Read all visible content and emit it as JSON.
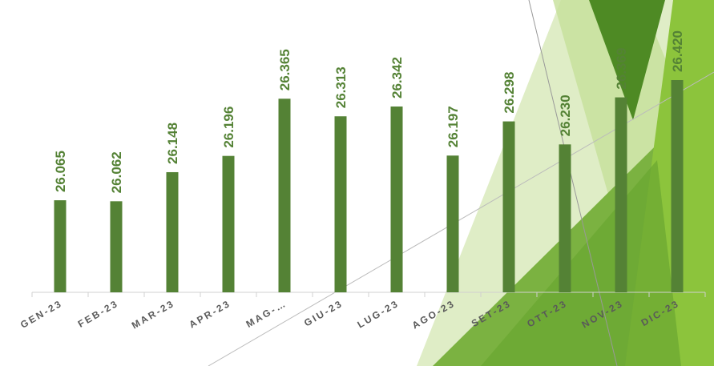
{
  "chart_data": {
    "type": "bar",
    "categories": [
      "GEN-23",
      "FEB-23",
      "MAR-23",
      "APR-23",
      "MAG-…",
      "GIU-23",
      "LUG-23",
      "AGO-23",
      "SET-23",
      "OTT-23",
      "NOV-23",
      "DIC-23"
    ],
    "values": [
      26065,
      26062,
      26148,
      26196,
      26365,
      26313,
      26342,
      26197,
      26298,
      26230,
      26369,
      26420
    ],
    "value_labels": [
      "26.065",
      "26.062",
      "26.148",
      "26.196",
      "26.365",
      "26.313",
      "26.342",
      "26.197",
      "26.298",
      "26.230",
      "26.369",
      "26.420"
    ],
    "color": "#548235",
    "ylim": [
      25793,
      26633
    ]
  }
}
